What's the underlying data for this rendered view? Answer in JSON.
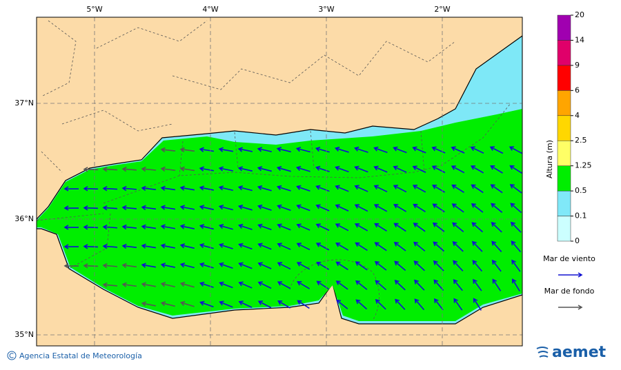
{
  "map": {
    "lon_labels": [
      "5°W",
      "4°W",
      "3°W",
      "2°W"
    ],
    "lat_labels": [
      "37°N",
      "36°N",
      "35°N"
    ]
  },
  "colorbar": {
    "title": "Altura (m)",
    "labels": [
      "0",
      "0.1",
      "0.5",
      "1.25",
      "2.5",
      "4",
      "6",
      "9",
      "14",
      "20"
    ],
    "colors": [
      "#ccffff",
      "#80e8f8",
      "#00ee00",
      "#ffff66",
      "#ffd700",
      "#ffa500",
      "#ff0000",
      "#e0006a",
      "#a000b0"
    ]
  },
  "legend": [
    {
      "label": "Mar de viento",
      "color": "#1010d0"
    },
    {
      "label": "Mar de fondo",
      "color": "#555555"
    }
  ],
  "footer": {
    "credit": "Agencia Estatal de Meteorología",
    "logo": "aemet"
  }
}
